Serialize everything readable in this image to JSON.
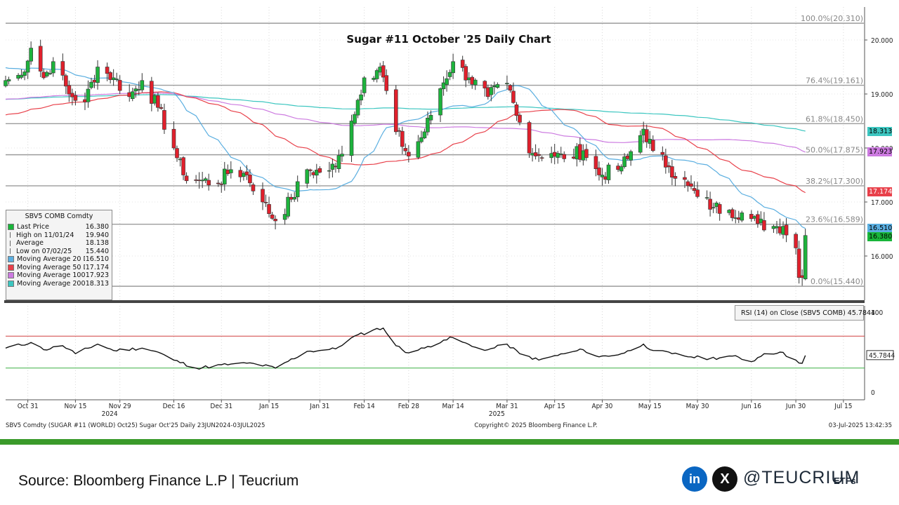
{
  "chart_data": {
    "type": "candlestick",
    "title": "Sugar #11 October '25 Daily Chart",
    "ylim": [
      15.0,
      20.5
    ],
    "x_range": [
      "2024-10-24",
      "2025-07-21"
    ],
    "x_ticks": [
      {
        "date": "2024-10-31",
        "label": "Oct 31"
      },
      {
        "date": "2024-11-15",
        "label": "Nov 15"
      },
      {
        "date": "2024-11-29",
        "label": "Nov 29"
      },
      {
        "date": "2024-12-16",
        "label": "Dec 16"
      },
      {
        "date": "2024-12-31",
        "label": "Dec 31"
      },
      {
        "date": "2025-01-15",
        "label": "Jan 15"
      },
      {
        "date": "2025-01-31",
        "label": "Jan 31"
      },
      {
        "date": "2025-02-14",
        "label": "Feb 14"
      },
      {
        "date": "2025-02-28",
        "label": "Feb 28"
      },
      {
        "date": "2025-03-14",
        "label": "Mar 14"
      },
      {
        "date": "2025-03-31",
        "label": "Mar 31"
      },
      {
        "date": "2025-04-15",
        "label": "Apr 15"
      },
      {
        "date": "2025-04-30",
        "label": "Apr 30"
      },
      {
        "date": "2025-05-15",
        "label": "May 15"
      },
      {
        "date": "2025-05-30",
        "label": "May 30"
      },
      {
        "date": "2025-06-16",
        "label": "Jun 16"
      },
      {
        "date": "2025-06-30",
        "label": "Jun 30"
      },
      {
        "date": "2025-07-15",
        "label": "Jul 15"
      }
    ],
    "year_labels": [
      {
        "date": "2024-11-29",
        "label": "2024"
      },
      {
        "date": "2025-03-31",
        "label": "2025"
      }
    ],
    "y_ticks": [
      16.0,
      17.0,
      18.0,
      19.0,
      20.0
    ],
    "y_tick_labels": [
      "16.000",
      "17.000",
      "18.000",
      "19.000",
      "20.000"
    ],
    "fib_levels": [
      {
        "value": 20.31,
        "label": "100.0%(20.310)"
      },
      {
        "value": 19.161,
        "label": "76.4%(19.161)"
      },
      {
        "value": 18.45,
        "label": "61.8%(18.450)"
      },
      {
        "value": 17.875,
        "label": "50.0%(17.875)"
      },
      {
        "value": 17.3,
        "label": "38.2%(17.300)"
      },
      {
        "value": 16.589,
        "label": "23.6%(16.589)"
      },
      {
        "value": 15.44,
        "label": "0.0%(15.440)"
      }
    ],
    "close_keyframes": [
      [
        "2024-10-24",
        19.25
      ],
      [
        "2024-10-29",
        19.35
      ],
      [
        "2024-11-01",
        19.85
      ],
      [
        "2024-11-05",
        19.3
      ],
      [
        "2024-11-08",
        19.6
      ],
      [
        "2024-11-13",
        19.0
      ],
      [
        "2024-11-18",
        18.85
      ],
      [
        "2024-11-22",
        19.5
      ],
      [
        "2024-11-27",
        19.3
      ],
      [
        "2024-12-02",
        18.95
      ],
      [
        "2024-12-06",
        19.25
      ],
      [
        "2024-12-11",
        18.75
      ],
      [
        "2024-12-16",
        18.0
      ],
      [
        "2024-12-19",
        17.5
      ],
      [
        "2024-12-24",
        17.4
      ],
      [
        "2024-12-30",
        17.35
      ],
      [
        "2025-01-03",
        17.6
      ],
      [
        "2025-01-08",
        17.5
      ],
      [
        "2025-01-13",
        17.0
      ],
      [
        "2025-01-17",
        16.65
      ],
      [
        "2025-01-22",
        17.05
      ],
      [
        "2025-01-27",
        17.6
      ],
      [
        "2025-01-31",
        17.55
      ],
      [
        "2025-02-05",
        17.65
      ],
      [
        "2025-02-10",
        18.5
      ],
      [
        "2025-02-14",
        19.3
      ],
      [
        "2025-02-19",
        19.5
      ],
      [
        "2025-02-24",
        18.3
      ],
      [
        "2025-02-28",
        17.85
      ],
      [
        "2025-03-05",
        18.3
      ],
      [
        "2025-03-10",
        19.1
      ],
      [
        "2025-03-14",
        19.6
      ],
      [
        "2025-03-19",
        19.3
      ],
      [
        "2025-03-25",
        18.95
      ],
      [
        "2025-03-31",
        19.2
      ],
      [
        "2025-04-03",
        18.6
      ],
      [
        "2025-04-08",
        17.9
      ],
      [
        "2025-04-14",
        17.9
      ],
      [
        "2025-04-18",
        17.8
      ],
      [
        "2025-04-24",
        17.95
      ],
      [
        "2025-04-29",
        17.5
      ],
      [
        "2025-05-05",
        17.6
      ],
      [
        "2025-05-08",
        17.8
      ],
      [
        "2025-05-13",
        18.35
      ],
      [
        "2025-05-16",
        17.95
      ],
      [
        "2025-05-21",
        17.65
      ],
      [
        "2025-05-27",
        17.3
      ],
      [
        "2025-05-30",
        17.1
      ],
      [
        "2025-06-04",
        16.9
      ],
      [
        "2025-06-09",
        16.85
      ],
      [
        "2025-06-13",
        16.8
      ],
      [
        "2025-06-18",
        16.6
      ],
      [
        "2025-06-23",
        16.55
      ],
      [
        "2025-06-26",
        16.55
      ],
      [
        "2025-06-30",
        16.15
      ],
      [
        "2025-07-01",
        15.6
      ],
      [
        "2025-07-02",
        15.6
      ],
      [
        "2025-07-03",
        16.38
      ]
    ],
    "rsi_keyframes": [
      [
        "2024-10-24",
        55
      ],
      [
        "2024-11-01",
        62
      ],
      [
        "2024-11-05",
        53
      ],
      [
        "2024-11-11",
        58
      ],
      [
        "2024-11-15",
        48
      ],
      [
        "2024-11-22",
        60
      ],
      [
        "2024-11-27",
        52
      ],
      [
        "2024-12-06",
        55
      ],
      [
        "2024-12-11",
        50
      ],
      [
        "2024-12-16",
        40
      ],
      [
        "2024-12-23",
        30
      ],
      [
        "2025-01-03",
        35
      ],
      [
        "2025-01-10",
        36
      ],
      [
        "2025-01-17",
        30
      ],
      [
        "2025-01-27",
        51
      ],
      [
        "2025-01-31",
        52
      ],
      [
        "2025-02-05",
        54
      ],
      [
        "2025-02-10",
        68
      ],
      [
        "2025-02-17",
        78
      ],
      [
        "2025-02-20",
        80
      ],
      [
        "2025-02-24",
        58
      ],
      [
        "2025-02-28",
        49
      ],
      [
        "2025-03-05",
        55
      ],
      [
        "2025-03-11",
        65
      ],
      [
        "2025-03-14",
        68
      ],
      [
        "2025-03-20",
        57
      ],
      [
        "2025-03-25",
        53
      ],
      [
        "2025-03-31",
        60
      ],
      [
        "2025-04-04",
        48
      ],
      [
        "2025-04-10",
        40
      ],
      [
        "2025-04-18",
        48
      ],
      [
        "2025-04-24",
        53
      ],
      [
        "2025-04-29",
        44
      ],
      [
        "2025-05-06",
        48
      ],
      [
        "2025-05-09",
        52
      ],
      [
        "2025-05-13",
        60
      ],
      [
        "2025-05-16",
        52
      ],
      [
        "2025-05-22",
        48
      ],
      [
        "2025-05-28",
        44
      ],
      [
        "2025-06-03",
        42
      ],
      [
        "2025-06-10",
        45
      ],
      [
        "2025-06-16",
        38
      ],
      [
        "2025-06-20",
        48
      ],
      [
        "2025-06-25",
        50
      ],
      [
        "2025-06-30",
        40
      ],
      [
        "2025-07-02",
        36
      ],
      [
        "2025-07-03",
        45.7844
      ]
    ],
    "rsi_title": "RSI (14)  on Close (SBV5 COMB) 45.7844",
    "rsi_value": "45.7844",
    "rsi_axis": [
      "100",
      "0"
    ],
    "rsi_levels": [
      70,
      30
    ],
    "series": [
      {
        "name": "Moving Average 20 Day",
        "color": "#5aaee0",
        "current": 16.51
      },
      {
        "name": "Moving Average 50 Day",
        "color": "#e8404a",
        "current": 17.174
      },
      {
        "name": "Moving Average 100 Day",
        "color": "#cc7ae0",
        "current": 17.923
      },
      {
        "name": "Moving Average 200 Day",
        "color": "#3cc6c0",
        "current": 18.313
      }
    ]
  },
  "legend": {
    "title": "SBV5 COMB Comdty",
    "rows": [
      {
        "label": "Last Price",
        "value": "16.380",
        "color": "#19b53a",
        "kind": "box"
      },
      {
        "label": "High on 11/01/24",
        "value": "19.940",
        "color": "#666",
        "kind": "mark"
      },
      {
        "label": "Average",
        "value": "18.138",
        "color": "#666",
        "kind": "mark"
      },
      {
        "label": "Low on 07/02/25",
        "value": "15.440",
        "color": "#666",
        "kind": "mark"
      },
      {
        "label": "Moving Average 20 Day",
        "value": "16.510",
        "color": "#5aaee0",
        "kind": "box"
      },
      {
        "label": "Moving Average 50 Day",
        "value": "17.174",
        "color": "#e8404a",
        "kind": "box"
      },
      {
        "label": "Moving Average 100 Day",
        "value": "17.923",
        "color": "#cc7ae0",
        "kind": "box"
      },
      {
        "label": "Moving Average 200 Day",
        "value": "18.313",
        "color": "#3cc6c0",
        "kind": "box"
      }
    ]
  },
  "price_tags": [
    {
      "text": "18.313",
      "color": "#3cc6c0",
      "fg": "#000"
    },
    {
      "text": "17.923",
      "color": "#cc7ae0",
      "fg": "#000"
    },
    {
      "text": "17.174",
      "color": "#e8404a",
      "fg": "#fff"
    },
    {
      "text": "16.510",
      "color": "#5aaee0",
      "fg": "#000"
    },
    {
      "text": "16.380",
      "color": "#19b53a",
      "fg": "#000"
    }
  ],
  "footer": {
    "left": "SBV5 Comdty (SUGAR #11 (WORLD) Oct25) Sugar Oct'25  Daily 23JUN2024-03JUL2025",
    "center": "Copyright© 2025 Bloomberg Finance L.P.",
    "right": "03-Jul-2025 13:42:35"
  },
  "source_text": "Source: Bloomberg Finance L.P | Teucrium",
  "social": {
    "linkedin": "in",
    "x": "X"
  },
  "handle": "@TEUCRIUM",
  "handle_suffix": "ETFs",
  "colors": {
    "up": "#1db33c",
    "down": "#e0202c",
    "green_bar": "#3a9a2a"
  }
}
